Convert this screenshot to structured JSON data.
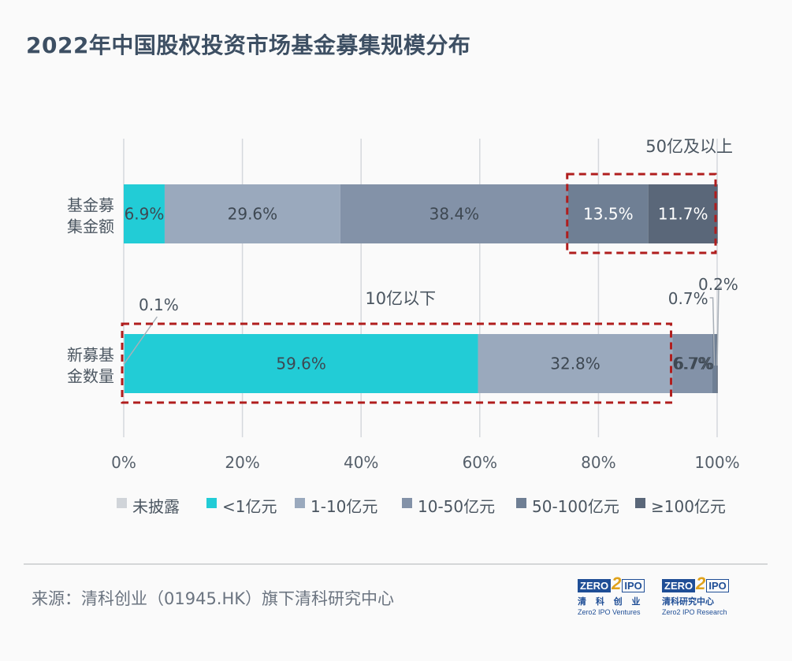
{
  "title": "2022年中国股权投资市场基金募集规模分布",
  "source": "来源：清科创业（01945.HK）旗下清科研究中心",
  "logos": [
    {
      "brand": "ZERO2IPO",
      "cn": "清 科 创 业",
      "en": "Zero2 IPO Ventures"
    },
    {
      "brand": "ZERO2IPO",
      "cn": "清科研究中心",
      "en": "Zero2 IPO Research"
    }
  ],
  "chart_data": {
    "type": "bar",
    "orientation": "horizontal",
    "stacked": "percent",
    "categories": [
      "基金募集金额",
      "新募基金数量"
    ],
    "category_lines": [
      [
        "基金募",
        "集金额"
      ],
      [
        "新募基",
        "金数量"
      ]
    ],
    "series": [
      {
        "name": "未披露",
        "color": "#d0d4d9",
        "values": [
          0,
          0.1
        ],
        "labels": [
          "",
          "0.1%"
        ]
      },
      {
        "name": "<1亿元",
        "color": "#22ccd6",
        "values": [
          6.9,
          59.6
        ],
        "labels": [
          "6.9%",
          "59.6%"
        ]
      },
      {
        "name": "1-10亿元",
        "color": "#9aa9bd",
        "values": [
          29.6,
          32.8
        ],
        "labels": [
          "29.6%",
          "32.8%"
        ]
      },
      {
        "name": "10-50亿元",
        "color": "#8392a8",
        "values": [
          38.4,
          6.7
        ],
        "labels": [
          "38.4%",
          "6.7%"
        ]
      },
      {
        "name": "50-100亿元",
        "color": "#6f7f94",
        "values": [
          13.5,
          0.7
        ],
        "labels": [
          "13.5%",
          "0.7%"
        ]
      },
      {
        "name": "≥100亿元",
        "color": "#5a6779",
        "values": [
          11.7,
          0.2
        ],
        "labels": [
          "11.7%",
          "0.2%"
        ]
      }
    ],
    "xlim": [
      0,
      100
    ],
    "xticks": [
      "0%",
      "20%",
      "40%",
      "60%",
      "80%",
      "100%"
    ],
    "grid": true,
    "legend": "bottom",
    "annotations": [
      {
        "text": "50亿及以上",
        "category": "基金募集金额",
        "from": 75.0,
        "to": 100
      },
      {
        "text": "10亿以下",
        "category": "新募基金数量",
        "from": 0,
        "to": 92.5
      }
    ],
    "highlight_color": "#b01d1d"
  }
}
